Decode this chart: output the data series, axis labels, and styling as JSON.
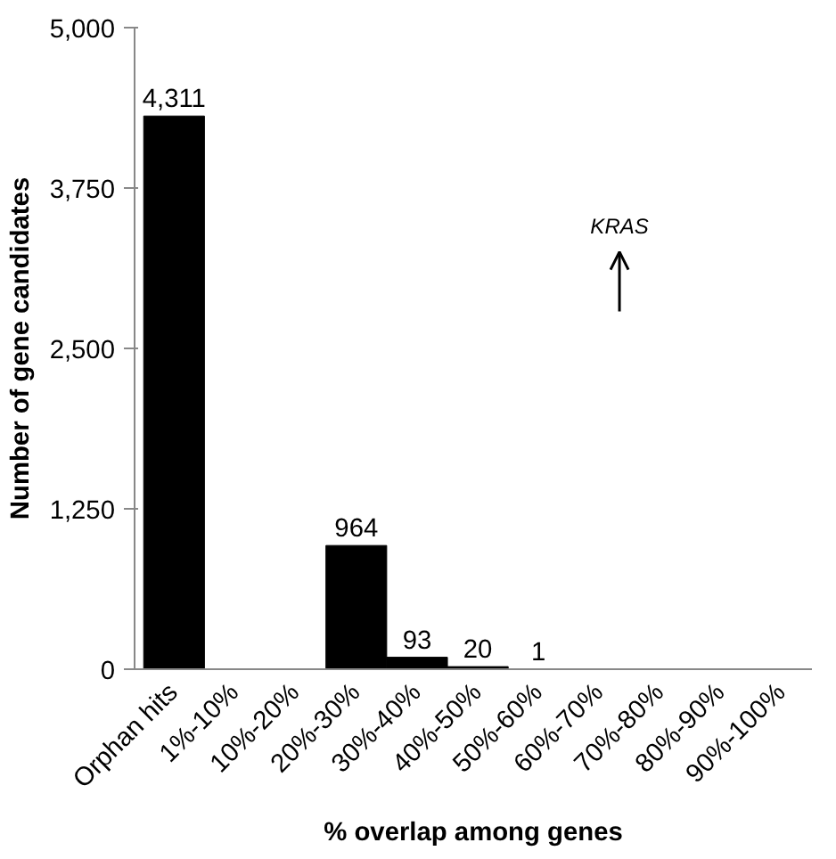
{
  "chart_data": {
    "type": "bar",
    "xlabel": "% overlap among genes",
    "ylabel": "Number of gene candidates",
    "categories": [
      "Orphan hits",
      "1%-10%",
      "10%-20%",
      "20%-30%",
      "30%-40%",
      "40%-50%",
      "50%-60%",
      "60%-70%",
      "70%-80%",
      "80%-90%",
      "90%-100%"
    ],
    "values": [
      4311,
      0,
      0,
      964,
      93,
      20,
      1,
      0,
      0,
      0,
      0
    ],
    "value_labels": [
      "4,311",
      null,
      null,
      "964",
      "93",
      "20",
      "1",
      null,
      null,
      null,
      null
    ],
    "color": "#000000",
    "ylim": [
      0,
      5000
    ],
    "yticks": [
      0,
      {
        "value": 1250,
        "label": "1,250"
      },
      {
        "value": 2500,
        "label": "2,500"
      },
      {
        "value": 3750,
        "label": "3,750"
      },
      {
        "value": 5000,
        "label": "5,000"
      }
    ],
    "grid": false,
    "annotations": [
      "KRAS"
    ]
  }
}
